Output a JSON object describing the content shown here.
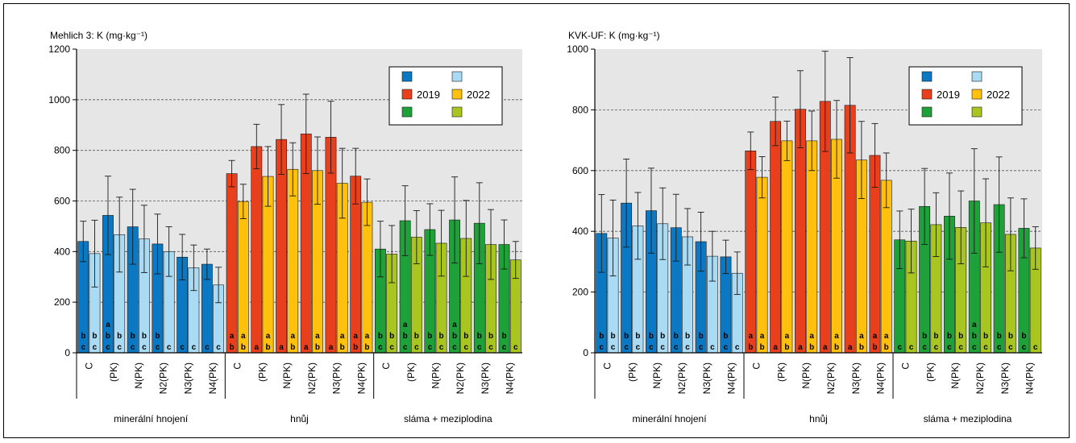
{
  "colors": {
    "min": [
      "#0a78c2",
      "#a9dbf4"
    ],
    "hnuj": [
      "#e8401c",
      "#ffc10e"
    ],
    "slama": [
      "#1fa13a",
      "#a9c520"
    ],
    "plot_bg": "#e6e6e6"
  },
  "chart_data": [
    {
      "type": "bar",
      "title": "Mehlich 3: K (mg·kg⁻¹)",
      "ylim": [
        0,
        1200
      ],
      "yticks": [
        "0",
        "200",
        "400",
        "600",
        "800",
        "1000",
        "1200"
      ],
      "grid": true,
      "legend_position": "top-right",
      "legend": [
        "2019",
        "2022"
      ],
      "groups": [
        "minerální hnojení",
        "hnůj",
        "sláma + meziplodina"
      ],
      "categories": [
        "C",
        "(PK)",
        "N(PK)",
        "N2(PK)",
        "N3(PK)",
        "N4(PK)"
      ],
      "series": [
        {
          "name": "2019",
          "group": "minerální hnojení",
          "values": [
            440,
            543,
            498,
            430,
            378,
            350
          ],
          "err": [
            80,
            155,
            148,
            118,
            90,
            60
          ],
          "letters": [
            "bc",
            "abc",
            "bc",
            "bc",
            "c",
            "c"
          ]
        },
        {
          "name": "2022",
          "group": "minerální hnojení",
          "values": [
            392,
            467,
            450,
            400,
            336,
            268
          ],
          "err": [
            132,
            148,
            133,
            98,
            90,
            70
          ],
          "letters": [
            "bc",
            "bc",
            "bc",
            "c",
            "c",
            "c"
          ]
        },
        {
          "name": "2019",
          "group": "hnůj",
          "values": [
            708,
            815,
            843,
            865,
            852,
            698
          ],
          "err": [
            52,
            88,
            138,
            157,
            142,
            110
          ],
          "letters": [
            "ab",
            "a",
            "a",
            "a",
            "a",
            "ab"
          ]
        },
        {
          "name": "2022",
          "group": "hnůj",
          "values": [
            598,
            697,
            725,
            720,
            670,
            595
          ],
          "err": [
            68,
            118,
            105,
            133,
            138,
            92
          ],
          "letters": [
            "ab",
            "ab",
            "ab",
            "ab",
            "ab",
            "ab"
          ]
        },
        {
          "name": "2019",
          "group": "sláma + meziplodina",
          "values": [
            410,
            522,
            487,
            525,
            512,
            428
          ],
          "err": [
            110,
            138,
            102,
            170,
            160,
            97
          ],
          "letters": [
            "bc",
            "abc",
            "bc",
            "abc",
            "bc",
            "bc"
          ]
        },
        {
          "name": "2022",
          "group": "sláma + meziplodina",
          "values": [
            390,
            457,
            433,
            452,
            428,
            367
          ],
          "err": [
            113,
            105,
            130,
            150,
            138,
            73
          ],
          "letters": [
            "bc",
            "bc",
            "bc",
            "bc",
            "bc",
            "c"
          ]
        }
      ]
    },
    {
      "type": "bar",
      "title": "KVK-UF: K (mg·kg⁻¹)",
      "ylim": [
        0,
        1000
      ],
      "yticks": [
        "0",
        "200",
        "400",
        "600",
        "800",
        "1000"
      ],
      "grid": true,
      "legend_position": "top-right",
      "legend": [
        "2019",
        "2022"
      ],
      "groups": [
        "minerální hnojení",
        "hnůj",
        "sláma + meziplodina"
      ],
      "categories": [
        "C",
        "(PK)",
        "N(PK)",
        "N2(PK)",
        "N3(PK)",
        "N4(PK)"
      ],
      "series": [
        {
          "name": "2019",
          "group": "minerální hnojení",
          "values": [
            393,
            493,
            468,
            412,
            366,
            316
          ],
          "err": [
            128,
            145,
            140,
            110,
            97,
            55
          ],
          "letters": [
            "bc",
            "bc",
            "bc",
            "bc",
            "bc",
            "bc"
          ]
        },
        {
          "name": "2022",
          "group": "minerální hnojení",
          "values": [
            378,
            418,
            425,
            382,
            318,
            262
          ],
          "err": [
            125,
            110,
            118,
            93,
            82,
            70
          ],
          "letters": [
            "bc",
            "bc",
            "bc",
            "bc",
            "c",
            "c"
          ]
        },
        {
          "name": "2019",
          "group": "hnůj",
          "values": [
            665,
            762,
            802,
            828,
            815,
            650
          ],
          "err": [
            62,
            80,
            127,
            165,
            157,
            105
          ],
          "letters": [
            "ab",
            "a",
            "a",
            "a",
            "a",
            "ab"
          ]
        },
        {
          "name": "2022",
          "group": "hnůj",
          "values": [
            578,
            698,
            698,
            703,
            635,
            568
          ],
          "err": [
            68,
            65,
            98,
            128,
            127,
            90
          ],
          "letters": [
            "ab",
            "ab",
            "ab",
            "ab",
            "ab",
            "ab"
          ]
        },
        {
          "name": "2019",
          "group": "sláma + meziplodina",
          "values": [
            372,
            482,
            450,
            500,
            488,
            410
          ],
          "err": [
            95,
            125,
            142,
            172,
            157,
            97
          ],
          "letters": [
            "c",
            "bc",
            "bc",
            "abc",
            "bc",
            "bc"
          ]
        },
        {
          "name": "2022",
          "group": "sláma + meziplodina",
          "values": [
            368,
            422,
            413,
            428,
            390,
            345
          ],
          "err": [
            105,
            105,
            120,
            145,
            120,
            70
          ],
          "letters": [
            "c",
            "bc",
            "bc",
            "bc",
            "bc",
            "c"
          ]
        }
      ]
    }
  ]
}
